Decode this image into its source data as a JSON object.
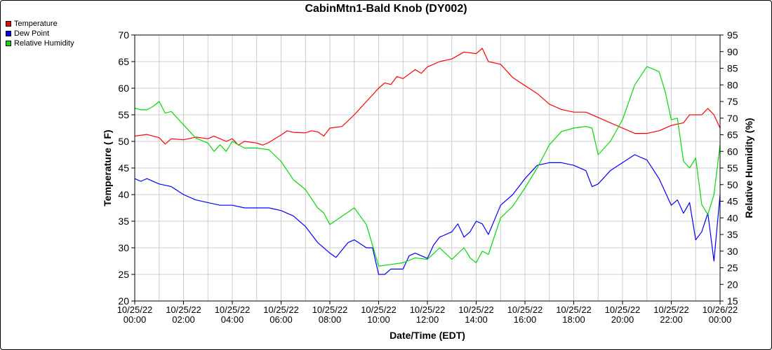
{
  "chart_data": {
    "type": "line",
    "title": "CabinMtn1-Bald Knob (DY002)",
    "xlabel": "Date/Time (EDT)",
    "ylabel": "Temperature ( F)",
    "y2label": "Relative Humidity (%)",
    "x_range": [
      "10/25/22 00:00",
      "10/26/22 00:00"
    ],
    "ylim": [
      20,
      70
    ],
    "y2lim": [
      15,
      95
    ],
    "grid": true,
    "legend_position": "top-left",
    "x_tick_labels": [
      [
        "10/25/22",
        "00:00"
      ],
      [
        "10/25/22",
        "02:00"
      ],
      [
        "10/25/22",
        "04:00"
      ],
      [
        "10/25/22",
        "06:00"
      ],
      [
        "10/25/22",
        "08:00"
      ],
      [
        "10/25/22",
        "10:00"
      ],
      [
        "10/25/22",
        "12:00"
      ],
      [
        "10/25/22",
        "14:00"
      ],
      [
        "10/25/22",
        "16:00"
      ],
      [
        "10/25/22",
        "18:00"
      ],
      [
        "10/25/22",
        "20:00"
      ],
      [
        "10/25/22",
        "22:00"
      ],
      [
        "10/26/22",
        "00:00"
      ]
    ],
    "y_ticks": [
      20,
      25,
      30,
      35,
      40,
      45,
      50,
      55,
      60,
      65,
      70
    ],
    "y2_ticks": [
      15,
      20,
      25,
      30,
      35,
      40,
      45,
      50,
      55,
      60,
      65,
      70,
      75,
      80,
      85,
      90,
      95
    ],
    "series": [
      {
        "name": "Temperature",
        "color": "#ff0000",
        "axis": "left",
        "points": [
          [
            "00:00",
            51
          ],
          [
            "00:30",
            51.3
          ],
          [
            "01:00",
            50.7
          ],
          [
            "01:15",
            49.5
          ],
          [
            "01:30",
            50.5
          ],
          [
            "02:00",
            50.3
          ],
          [
            "02:30",
            50.8
          ],
          [
            "03:00",
            50.5
          ],
          [
            "03:15",
            51
          ],
          [
            "03:30",
            50.5
          ],
          [
            "03:45",
            50
          ],
          [
            "04:00",
            50.5
          ],
          [
            "04:15",
            49.3
          ],
          [
            "04:30",
            50
          ],
          [
            "05:00",
            49.7
          ],
          [
            "05:15",
            49.3
          ],
          [
            "05:30",
            49.8
          ],
          [
            "06:00",
            51.2
          ],
          [
            "06:15",
            52
          ],
          [
            "06:30",
            51.7
          ],
          [
            "07:00",
            51.6
          ],
          [
            "07:15",
            52
          ],
          [
            "07:30",
            51.8
          ],
          [
            "07:45",
            51
          ],
          [
            "08:00",
            52.5
          ],
          [
            "08:30",
            52.8
          ],
          [
            "09:00",
            55
          ],
          [
            "09:30",
            57.5
          ],
          [
            "10:00",
            60
          ],
          [
            "10:15",
            61
          ],
          [
            "10:30",
            60.7
          ],
          [
            "10:45",
            62.2
          ],
          [
            "11:00",
            61.8
          ],
          [
            "11:30",
            63.5
          ],
          [
            "11:45",
            62.8
          ],
          [
            "12:00",
            64
          ],
          [
            "12:30",
            65
          ],
          [
            "13:00",
            65.5
          ],
          [
            "13:30",
            66.8
          ],
          [
            "14:00",
            66.5
          ],
          [
            "14:15",
            67.5
          ],
          [
            "14:30",
            65
          ],
          [
            "15:00",
            64.5
          ],
          [
            "15:30",
            62
          ],
          [
            "16:00",
            60.5
          ],
          [
            "16:30",
            59
          ],
          [
            "17:00",
            57
          ],
          [
            "17:30",
            56
          ],
          [
            "18:00",
            55.5
          ],
          [
            "18:30",
            55.5
          ],
          [
            "19:00",
            54.5
          ],
          [
            "19:30",
            53.5
          ],
          [
            "20:00",
            52.5
          ],
          [
            "20:30",
            51.5
          ],
          [
            "21:00",
            51.5
          ],
          [
            "21:30",
            52
          ],
          [
            "22:00",
            53
          ],
          [
            "22:30",
            53.5
          ],
          [
            "22:45",
            55
          ],
          [
            "23:00",
            55
          ],
          [
            "23:15",
            55
          ],
          [
            "23:30",
            56.2
          ],
          [
            "23:45",
            55
          ],
          [
            "24:00",
            52.5
          ]
        ]
      },
      {
        "name": "Dew Point",
        "color": "#0000ff",
        "axis": "left",
        "points": [
          [
            "00:00",
            43
          ],
          [
            "00:15",
            42.5
          ],
          [
            "00:30",
            43
          ],
          [
            "01:00",
            42
          ],
          [
            "01:30",
            41.5
          ],
          [
            "02:00",
            40
          ],
          [
            "02:30",
            39
          ],
          [
            "03:00",
            38.5
          ],
          [
            "03:30",
            38
          ],
          [
            "04:00",
            38
          ],
          [
            "04:30",
            37.5
          ],
          [
            "05:00",
            37.5
          ],
          [
            "05:30",
            37.5
          ],
          [
            "06:00",
            37
          ],
          [
            "06:30",
            36
          ],
          [
            "07:00",
            34
          ],
          [
            "07:30",
            31
          ],
          [
            "08:00",
            29
          ],
          [
            "08:15",
            28.2
          ],
          [
            "08:45",
            31
          ],
          [
            "09:00",
            31.5
          ],
          [
            "09:30",
            30
          ],
          [
            "09:45",
            30
          ],
          [
            "10:00",
            25
          ],
          [
            "10:15",
            25
          ],
          [
            "10:30",
            26
          ],
          [
            "11:00",
            26
          ],
          [
            "11:15",
            28.5
          ],
          [
            "11:30",
            29
          ],
          [
            "12:00",
            28
          ],
          [
            "12:15",
            30.5
          ],
          [
            "12:30",
            32
          ],
          [
            "13:00",
            33
          ],
          [
            "13:15",
            34.5
          ],
          [
            "13:30",
            32
          ],
          [
            "13:45",
            33
          ],
          [
            "14:00",
            35
          ],
          [
            "14:15",
            34.5
          ],
          [
            "14:30",
            32.5
          ],
          [
            "15:00",
            38
          ],
          [
            "15:30",
            40
          ],
          [
            "16:00",
            43
          ],
          [
            "16:30",
            45.5
          ],
          [
            "17:00",
            46
          ],
          [
            "17:30",
            46
          ],
          [
            "18:00",
            45.5
          ],
          [
            "18:30",
            44.5
          ],
          [
            "18:45",
            41.5
          ],
          [
            "19:00",
            42
          ],
          [
            "19:30",
            44.5
          ],
          [
            "20:00",
            46
          ],
          [
            "20:30",
            47.5
          ],
          [
            "21:00",
            46.5
          ],
          [
            "21:30",
            43
          ],
          [
            "22:00",
            38
          ],
          [
            "22:15",
            39
          ],
          [
            "22:30",
            36.5
          ],
          [
            "22:45",
            38.5
          ],
          [
            "23:00",
            31.5
          ],
          [
            "23:15",
            33
          ],
          [
            "23:30",
            36.5
          ],
          [
            "23:45",
            27.5
          ],
          [
            "24:00",
            40
          ]
        ]
      },
      {
        "name": "Relative Humidity",
        "color": "#00dd00",
        "axis": "right",
        "points": [
          [
            "00:00",
            73
          ],
          [
            "00:15",
            72.5
          ],
          [
            "00:30",
            72.5
          ],
          [
            "00:45",
            73.5
          ],
          [
            "01:00",
            75
          ],
          [
            "01:15",
            71.5
          ],
          [
            "01:30",
            72
          ],
          [
            "02:00",
            68
          ],
          [
            "02:30",
            64
          ],
          [
            "03:00",
            62.5
          ],
          [
            "03:15",
            60
          ],
          [
            "03:30",
            62
          ],
          [
            "03:45",
            60
          ],
          [
            "04:00",
            63
          ],
          [
            "04:30",
            61
          ],
          [
            "05:00",
            61
          ],
          [
            "05:30",
            60.5
          ],
          [
            "06:00",
            57
          ],
          [
            "06:30",
            51.5
          ],
          [
            "07:00",
            48.5
          ],
          [
            "07:30",
            43
          ],
          [
            "07:45",
            41.5
          ],
          [
            "08:00",
            38
          ],
          [
            "08:30",
            40.5
          ],
          [
            "09:00",
            43
          ],
          [
            "09:30",
            38
          ],
          [
            "10:00",
            25.5
          ],
          [
            "10:30",
            26
          ],
          [
            "11:00",
            26.5
          ],
          [
            "11:30",
            28
          ],
          [
            "12:00",
            27.5
          ],
          [
            "12:30",
            31
          ],
          [
            "13:00",
            27.5
          ],
          [
            "13:30",
            31
          ],
          [
            "13:45",
            28
          ],
          [
            "14:00",
            26.5
          ],
          [
            "14:15",
            30
          ],
          [
            "14:30",
            29
          ],
          [
            "15:00",
            40
          ],
          [
            "15:30",
            43.5
          ],
          [
            "16:00",
            49
          ],
          [
            "16:30",
            55
          ],
          [
            "17:00",
            62
          ],
          [
            "17:30",
            66
          ],
          [
            "18:00",
            67
          ],
          [
            "18:30",
            67.5
          ],
          [
            "18:45",
            67
          ],
          [
            "19:00",
            59
          ],
          [
            "19:30",
            63
          ],
          [
            "20:00",
            69.5
          ],
          [
            "20:30",
            80
          ],
          [
            "21:00",
            85.5
          ],
          [
            "21:30",
            84
          ],
          [
            "21:45",
            78
          ],
          [
            "22:00",
            69.5
          ],
          [
            "22:15",
            70
          ],
          [
            "22:30",
            57
          ],
          [
            "22:45",
            55
          ],
          [
            "23:00",
            58
          ],
          [
            "23:15",
            44
          ],
          [
            "23:30",
            41
          ],
          [
            "23:45",
            47
          ],
          [
            "24:00",
            62
          ]
        ]
      }
    ]
  }
}
